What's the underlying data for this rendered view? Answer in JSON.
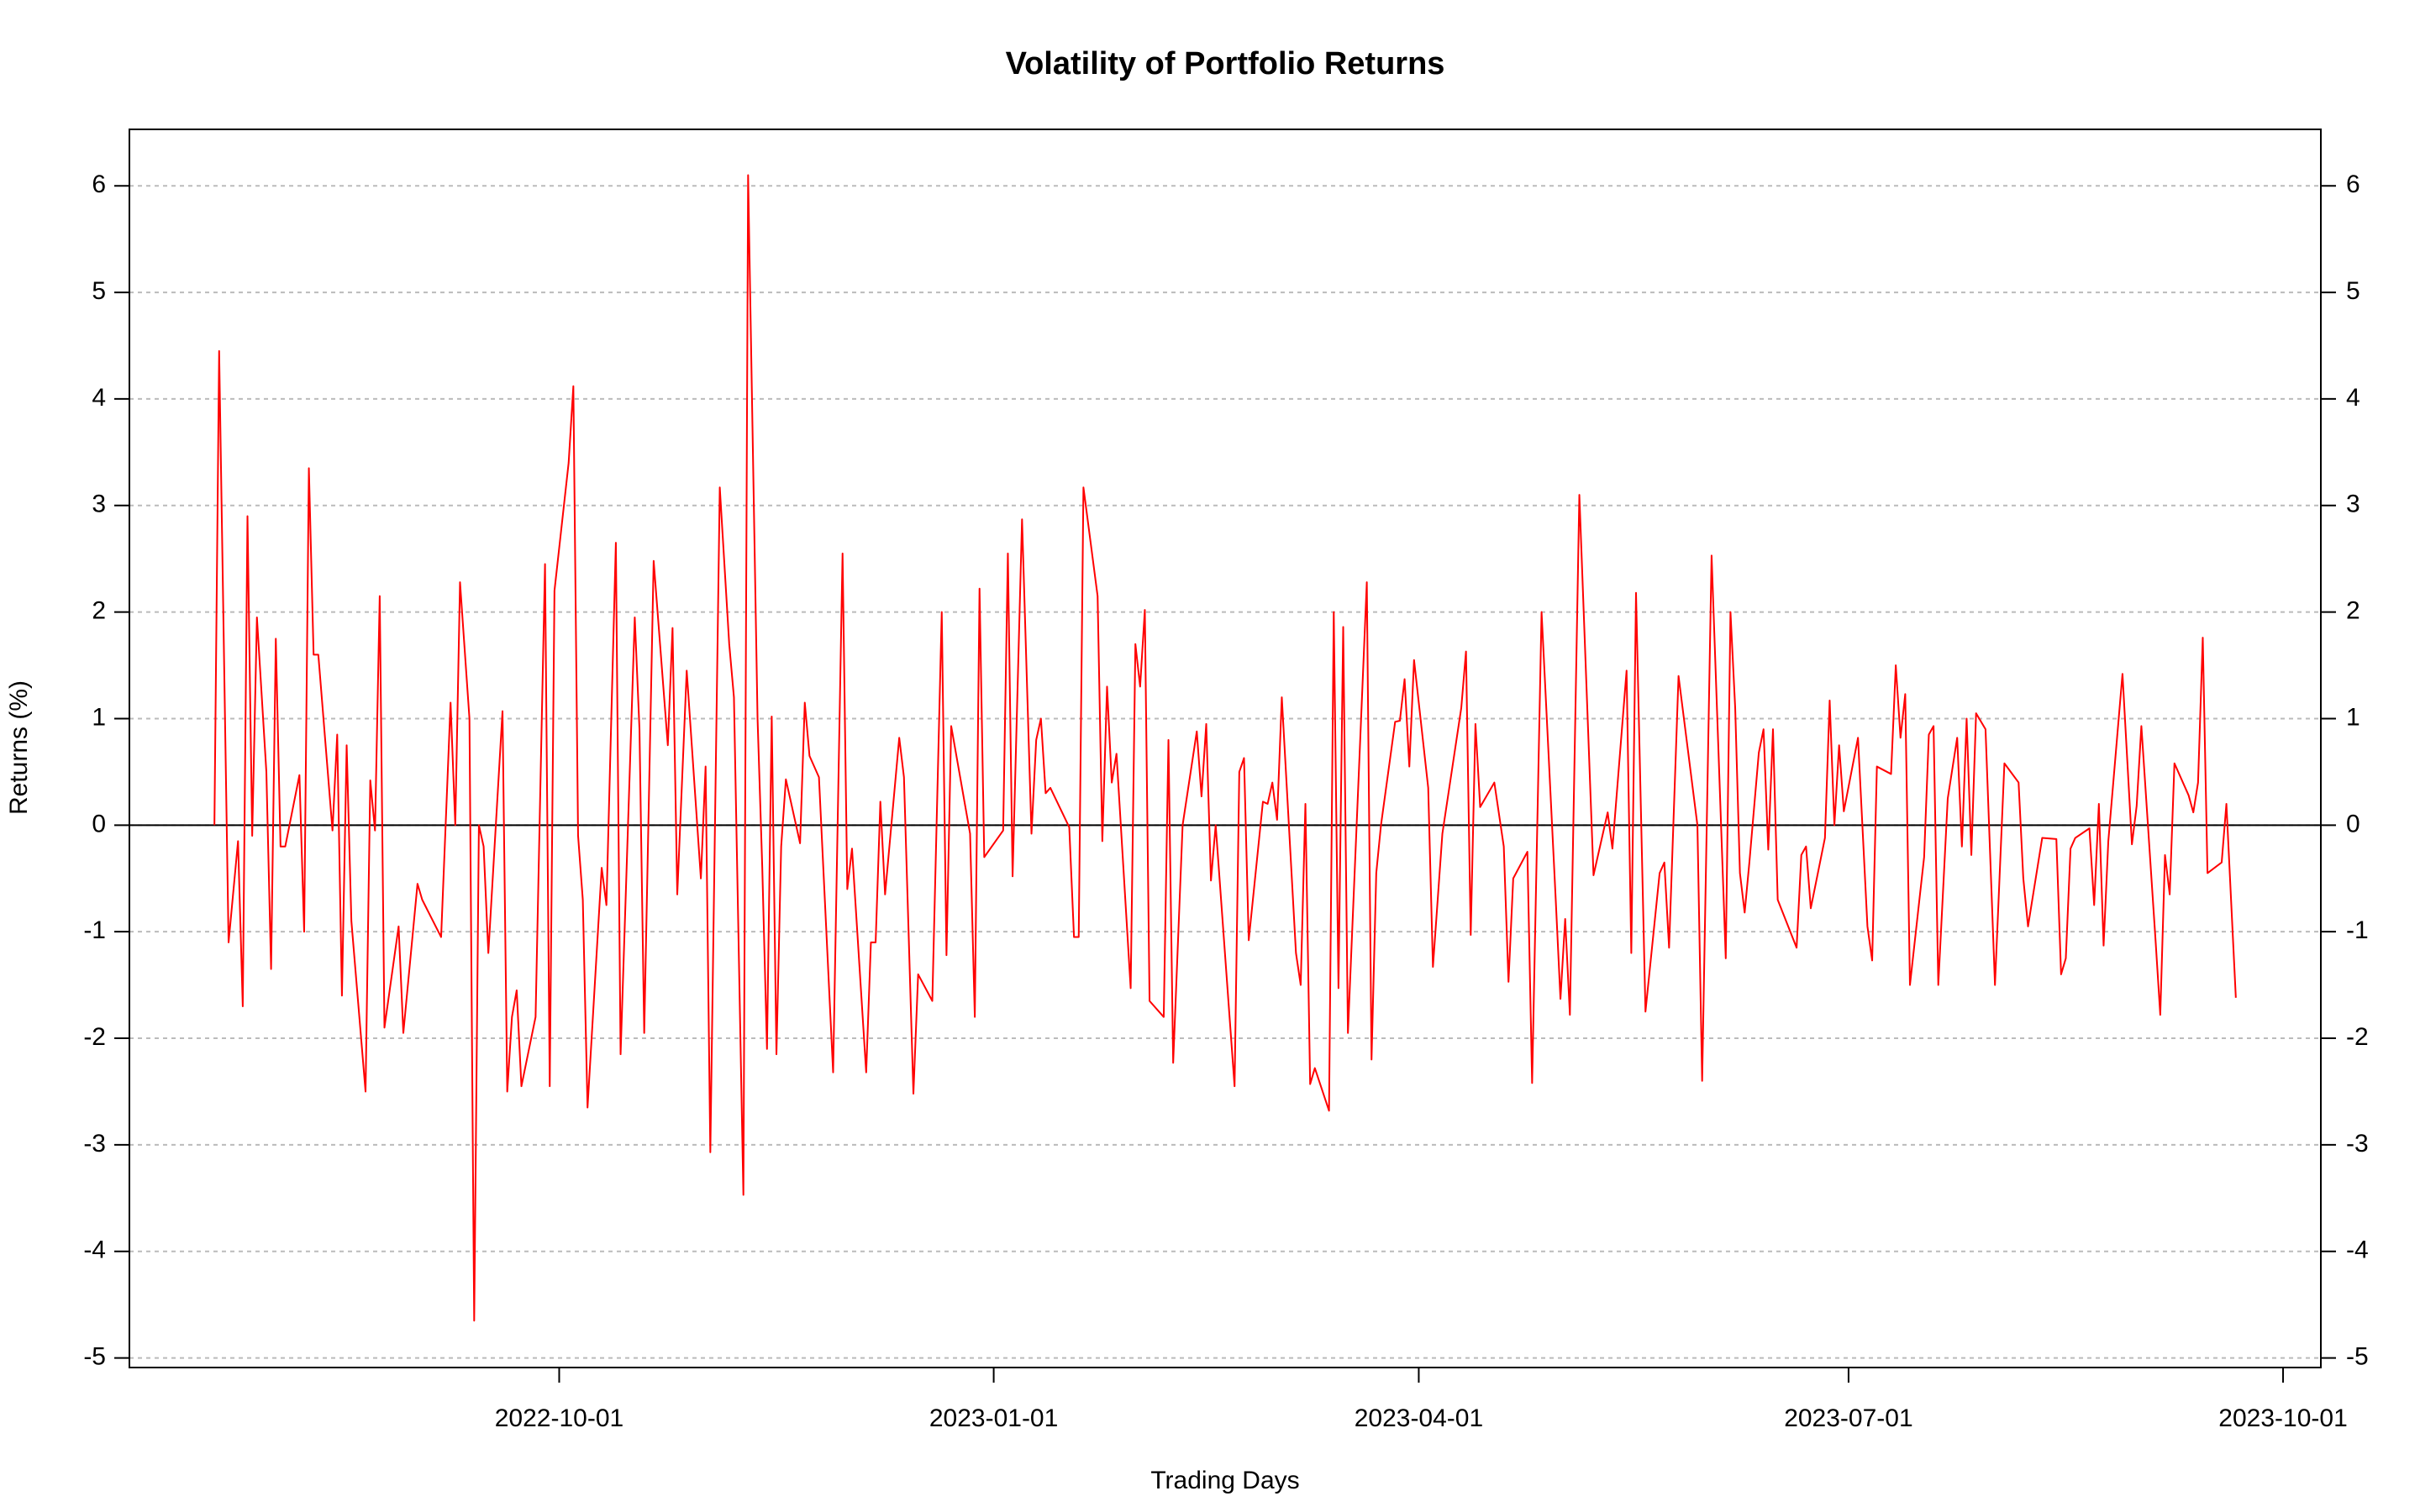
{
  "chart_data": {
    "type": "line",
    "title": "Volatility of Portfolio Returns",
    "xlabel": "Trading Days",
    "ylabel": "Returns (%)",
    "color": "#ff0000",
    "grid": true,
    "hline": 0,
    "mirror_y_axis": true,
    "xlim": [
      "2022-07-02",
      "2023-10-09"
    ],
    "xticks": [
      "2022-10-01",
      "2023-01-01",
      "2023-04-01",
      "2023-07-01",
      "2023-10-01"
    ],
    "ylim": [
      -5.09,
      6.53
    ],
    "yticks": [
      -5,
      -4,
      -3,
      -2,
      -1,
      0,
      1,
      2,
      3,
      4,
      5,
      6
    ],
    "x": [
      "2022-07-20",
      "2022-07-21",
      "2022-07-23",
      "2022-07-25",
      "2022-07-26",
      "2022-07-27",
      "2022-07-28",
      "2022-07-29",
      "2022-07-31",
      "2022-08-01",
      "2022-08-02",
      "2022-08-03",
      "2022-08-04",
      "2022-08-07",
      "2022-08-08",
      "2022-08-09",
      "2022-08-10",
      "2022-08-11",
      "2022-08-14",
      "2022-08-15",
      "2022-08-16",
      "2022-08-17",
      "2022-08-18",
      "2022-08-21",
      "2022-08-22",
      "2022-08-23",
      "2022-08-24",
      "2022-08-25",
      "2022-08-28",
      "2022-08-29",
      "2022-09-01",
      "2022-09-02",
      "2022-09-06",
      "2022-09-08",
      "2022-09-09",
      "2022-09-10",
      "2022-09-12",
      "2022-09-13",
      "2022-09-14",
      "2022-09-15",
      "2022-09-16",
      "2022-09-19",
      "2022-09-20",
      "2022-09-21",
      "2022-09-22",
      "2022-09-23",
      "2022-09-26",
      "2022-09-28",
      "2022-09-29",
      "2022-09-30",
      "2022-10-03",
      "2022-10-04",
      "2022-10-05",
      "2022-10-06",
      "2022-10-07",
      "2022-10-10",
      "2022-10-11",
      "2022-10-13",
      "2022-10-14",
      "2022-10-17",
      "2022-10-18",
      "2022-10-19",
      "2022-10-21",
      "2022-10-24",
      "2022-10-25",
      "2022-10-26",
      "2022-10-28",
      "2022-10-31",
      "2022-11-01",
      "2022-11-02",
      "2022-11-04",
      "2022-11-06",
      "2022-11-07",
      "2022-11-09",
      "2022-11-10",
      "2022-11-12",
      "2022-11-13",
      "2022-11-14",
      "2022-11-15",
      "2022-11-16",
      "2022-11-17",
      "2022-11-18",
      "2022-11-21",
      "2022-11-22",
      "2022-11-23",
      "2022-11-25",
      "2022-11-28",
      "2022-11-30",
      "2022-12-01",
      "2022-12-02",
      "2022-12-05",
      "2022-12-06",
      "2022-12-07",
      "2022-12-08",
      "2022-12-09",
      "2022-12-12",
      "2022-12-13",
      "2022-12-15",
      "2022-12-16",
      "2022-12-19",
      "2022-12-21",
      "2022-12-22",
      "2022-12-23",
      "2022-12-27",
      "2022-12-28",
      "2022-12-29",
      "2022-12-30",
      "2023-01-03",
      "2023-01-04",
      "2023-01-05",
      "2023-01-07",
      "2023-01-09",
      "2023-01-10",
      "2023-01-11",
      "2023-01-12",
      "2023-01-13",
      "2023-01-17",
      "2023-01-18",
      "2023-01-19",
      "2023-01-20",
      "2023-01-23",
      "2023-01-24",
      "2023-01-25",
      "2023-01-26",
      "2023-01-27",
      "2023-01-30",
      "2023-01-31",
      "2023-02-01",
      "2023-02-02",
      "2023-02-03",
      "2023-02-06",
      "2023-02-07",
      "2023-02-08",
      "2023-02-10",
      "2023-02-13",
      "2023-02-14",
      "2023-02-15",
      "2023-02-16",
      "2023-02-17",
      "2023-02-21",
      "2023-02-22",
      "2023-02-23",
      "2023-02-24",
      "2023-02-27",
      "2023-02-28",
      "2023-03-01",
      "2023-03-02",
      "2023-03-03",
      "2023-03-06",
      "2023-03-07",
      "2023-03-08",
      "2023-03-09",
      "2023-03-10",
      "2023-03-13",
      "2023-03-14",
      "2023-03-15",
      "2023-03-16",
      "2023-03-17",
      "2023-03-21",
      "2023-03-22",
      "2023-03-23",
      "2023-03-24",
      "2023-03-27",
      "2023-03-28",
      "2023-03-29",
      "2023-03-30",
      "2023-03-31",
      "2023-04-03",
      "2023-04-04",
      "2023-04-06",
      "2023-04-10",
      "2023-04-11",
      "2023-04-12",
      "2023-04-13",
      "2023-04-14",
      "2023-04-17",
      "2023-04-19",
      "2023-04-20",
      "2023-04-21",
      "2023-04-24",
      "2023-04-25",
      "2023-04-27",
      "2023-04-30",
      "2023-05-01",
      "2023-05-02",
      "2023-05-03",
      "2023-05-05",
      "2023-05-08",
      "2023-05-11",
      "2023-05-12",
      "2023-05-15",
      "2023-05-16",
      "2023-05-17",
      "2023-05-19",
      "2023-05-22",
      "2023-05-23",
      "2023-05-24",
      "2023-05-26",
      "2023-05-30",
      "2023-05-31",
      "2023-06-02",
      "2023-06-05",
      "2023-06-06",
      "2023-06-07",
      "2023-06-08",
      "2023-06-09",
      "2023-06-10",
      "2023-06-12",
      "2023-06-13",
      "2023-06-14",
      "2023-06-15",
      "2023-06-16",
      "2023-06-20",
      "2023-06-21",
      "2023-06-22",
      "2023-06-23",
      "2023-06-26",
      "2023-06-27",
      "2023-06-28",
      "2023-06-29",
      "2023-06-30",
      "2023-07-03",
      "2023-07-05",
      "2023-07-06",
      "2023-07-07",
      "2023-07-10",
      "2023-07-11",
      "2023-07-12",
      "2023-07-13",
      "2023-07-14",
      "2023-07-17",
      "2023-07-18",
      "2023-07-19",
      "2023-07-20",
      "2023-07-22",
      "2023-07-24",
      "2023-07-25",
      "2023-07-26",
      "2023-07-27",
      "2023-07-28",
      "2023-07-30",
      "2023-08-01",
      "2023-08-03",
      "2023-08-06",
      "2023-08-07",
      "2023-08-08",
      "2023-08-11",
      "2023-08-14",
      "2023-08-15",
      "2023-08-16",
      "2023-08-17",
      "2023-08-18",
      "2023-08-21",
      "2023-08-22",
      "2023-08-23",
      "2023-08-24",
      "2023-08-25",
      "2023-08-28",
      "2023-08-30",
      "2023-08-31",
      "2023-09-01",
      "2023-09-04",
      "2023-09-05",
      "2023-09-06",
      "2023-09-07",
      "2023-09-08",
      "2023-09-11",
      "2023-09-12",
      "2023-09-13",
      "2023-09-14",
      "2023-09-15",
      "2023-09-18",
      "2023-09-19",
      "2023-09-21"
    ],
    "values": [
      0,
      4.45,
      -1.1,
      -0.15,
      -1.7,
      2.9,
      -0.1,
      1.95,
      0.5,
      -1.35,
      1.75,
      -0.2,
      -0.2,
      0.47,
      -1.0,
      3.35,
      1.6,
      1.6,
      -0.05,
      0.85,
      -1.6,
      0.75,
      -0.9,
      -2.5,
      0.42,
      -0.05,
      2.15,
      -1.9,
      -0.95,
      -1.95,
      -0.55,
      -0.7,
      -1.05,
      1.15,
      0.0,
      2.28,
      1.0,
      -4.65,
      0.0,
      -0.2,
      -1.2,
      1.07,
      -2.5,
      -1.8,
      -1.55,
      -2.45,
      -1.8,
      2.45,
      -2.45,
      2.2,
      3.4,
      4.12,
      -0.1,
      -0.7,
      -2.65,
      -0.4,
      -0.75,
      2.65,
      -2.15,
      1.95,
      0.9,
      -1.95,
      2.48,
      0.75,
      1.85,
      -0.65,
      1.45,
      -0.5,
      0.55,
      -3.07,
      3.17,
      1.7,
      1.2,
      -3.47,
      6.1,
      1.0,
      -0.4,
      -2.1,
      1.02,
      -2.15,
      -0.2,
      0.43,
      -0.17,
      1.15,
      0.65,
      0.45,
      -2.32,
      2.55,
      -0.6,
      -0.22,
      -2.32,
      -1.1,
      -1.1,
      0.22,
      -0.65,
      0.82,
      0.45,
      -2.52,
      -1.4,
      -1.65,
      2.0,
      -1.22,
      0.93,
      -0.08,
      -1.8,
      2.22,
      -0.3,
      -0.05,
      2.55,
      -0.48,
      2.87,
      -0.08,
      0.8,
      1.0,
      0.3,
      0.35,
      -0.02,
      -1.05,
      -1.05,
      3.17,
      2.15,
      -0.15,
      1.3,
      0.4,
      0.67,
      -1.53,
      1.7,
      1.3,
      2.02,
      -1.65,
      -1.8,
      0.8,
      -2.23,
      0.0,
      0.88,
      0.27,
      0.95,
      -0.52,
      0.0,
      -2.45,
      0.5,
      0.63,
      -1.08,
      0.22,
      0.2,
      0.4,
      0.05,
      1.2,
      -1.2,
      -1.5,
      0.2,
      -2.43,
      -2.28,
      -2.68,
      2.0,
      -1.53,
      1.86,
      -1.95,
      2.28,
      -2.2,
      -0.45,
      0.0,
      0.97,
      0.98,
      1.37,
      0.55,
      1.55,
      0.35,
      -1.33,
      -0.08,
      1.1,
      1.63,
      -1.03,
      0.95,
      0.17,
      0.4,
      -0.2,
      -1.47,
      -0.5,
      -0.25,
      -2.42,
      2.0,
      -0.7,
      -1.63,
      -0.88,
      -1.78,
      3.1,
      -0.47,
      0.12,
      -0.22,
      1.45,
      -1.2,
      2.18,
      -1.75,
      -0.45,
      -0.35,
      -1.15,
      1.4,
      0.0,
      -2.4,
      2.53,
      -1.25,
      2.0,
      1.1,
      -0.45,
      -0.82,
      -0.35,
      0.68,
      0.9,
      -0.23,
      0.9,
      -0.7,
      -1.15,
      -0.28,
      -0.2,
      -0.78,
      -0.12,
      1.17,
      0.0,
      0.75,
      0.13,
      0.82,
      -0.95,
      -1.27,
      0.55,
      0.48,
      1.5,
      0.82,
      1.23,
      -1.5,
      -0.3,
      0.85,
      0.93,
      -1.5,
      0.25,
      0.82,
      -0.2,
      1.0,
      -0.28,
      1.05,
      0.9,
      -1.5,
      0.58,
      0.4,
      -0.5,
      -0.95,
      -0.12,
      -0.13,
      -1.4,
      -1.25,
      -0.22,
      -0.12,
      -0.03,
      -0.75,
      0.2,
      -1.13,
      -0.15,
      1.42,
      -0.18,
      0.18,
      0.93,
      -1.08,
      -1.78,
      -0.28,
      -0.65,
      0.58,
      0.28,
      0.12,
      0.4,
      1.76,
      -0.45,
      -0.35,
      0.2,
      -1.62
    ]
  }
}
